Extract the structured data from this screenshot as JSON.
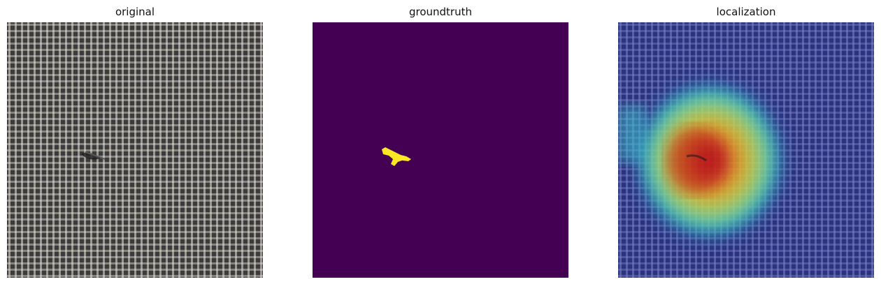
{
  "figure": {
    "panels": [
      {
        "title": "original",
        "image_icon": "burlap-fabric-texture-with-small-defect"
      },
      {
        "title": "groundtruth",
        "image_icon": "defect-segmentation-mask"
      },
      {
        "title": "localization",
        "image_icon": "anomaly-heatmap-overlay-on-fabric"
      }
    ]
  },
  "colors": {
    "background": "#ffffff",
    "fabric_base": "#4a4a4a",
    "fabric_thread": "#b9b5ae",
    "mask_background": "#440154",
    "mask_defect": "#fde725",
    "heatmap_low": "#1f2fa8",
    "heatmap_mid": "#30d0c0",
    "heatmap_high": "#d81e1e"
  }
}
